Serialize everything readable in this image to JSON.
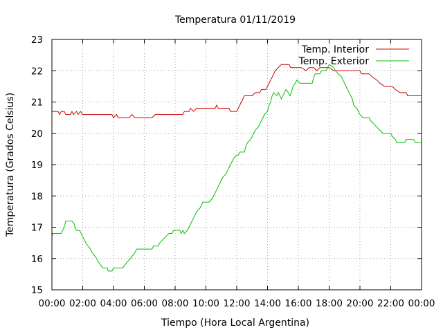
{
  "chart_data": {
    "type": "line",
    "title": "Temperatura 01/11/2019",
    "xlabel": "Tiempo (Hora Local Argentina)",
    "ylabel": "Temperatura (Grados Celsius)",
    "x_unit": "hours",
    "xlim": [
      0,
      24
    ],
    "ylim": [
      15,
      23
    ],
    "x_ticks": [
      0,
      2,
      4,
      6,
      8,
      10,
      12,
      14,
      16,
      18,
      20,
      22,
      24
    ],
    "x_tick_labels": [
      "00:00",
      "02:00",
      "04:00",
      "06:00",
      "08:00",
      "10:00",
      "12:00",
      "14:00",
      "16:00",
      "18:00",
      "20:00",
      "22:00",
      "00:00"
    ],
    "y_ticks": [
      15,
      16,
      17,
      18,
      19,
      20,
      21,
      22,
      23
    ],
    "y_tick_labels": [
      "15",
      "16",
      "17",
      "18",
      "19",
      "20",
      "21",
      "22",
      "23"
    ],
    "grid": true,
    "legend_position": "top-right",
    "series": [
      {
        "name": "Temp. Interior",
        "color": "#cc0000",
        "points": [
          [
            0.0,
            20.7
          ],
          [
            0.4,
            20.7
          ],
          [
            0.5,
            20.6
          ],
          [
            0.6,
            20.7
          ],
          [
            0.8,
            20.7
          ],
          [
            0.9,
            20.6
          ],
          [
            1.2,
            20.6
          ],
          [
            1.3,
            20.7
          ],
          [
            1.4,
            20.6
          ],
          [
            1.6,
            20.7
          ],
          [
            1.7,
            20.6
          ],
          [
            1.85,
            20.7
          ],
          [
            2.0,
            20.6
          ],
          [
            2.4,
            20.6
          ],
          [
            3.0,
            20.6
          ],
          [
            3.5,
            20.6
          ],
          [
            3.9,
            20.6
          ],
          [
            4.0,
            20.5
          ],
          [
            4.2,
            20.6
          ],
          [
            4.3,
            20.5
          ],
          [
            5.0,
            20.5
          ],
          [
            5.2,
            20.6
          ],
          [
            5.4,
            20.5
          ],
          [
            6.0,
            20.5
          ],
          [
            6.5,
            20.5
          ],
          [
            6.7,
            20.6
          ],
          [
            7.5,
            20.6
          ],
          [
            8.5,
            20.6
          ],
          [
            8.6,
            20.7
          ],
          [
            8.9,
            20.7
          ],
          [
            9.0,
            20.8
          ],
          [
            9.2,
            20.7
          ],
          [
            9.4,
            20.8
          ],
          [
            10.0,
            20.8
          ],
          [
            10.6,
            20.8
          ],
          [
            10.7,
            20.9
          ],
          [
            10.8,
            20.8
          ],
          [
            11.5,
            20.8
          ],
          [
            11.6,
            20.7
          ],
          [
            12.0,
            20.7
          ],
          [
            12.3,
            21.0
          ],
          [
            12.4,
            21.1
          ],
          [
            12.5,
            21.2
          ],
          [
            13.0,
            21.2
          ],
          [
            13.2,
            21.3
          ],
          [
            13.5,
            21.3
          ],
          [
            13.6,
            21.4
          ],
          [
            13.9,
            21.4
          ],
          [
            14.1,
            21.6
          ],
          [
            14.3,
            21.8
          ],
          [
            14.5,
            22.0
          ],
          [
            14.7,
            22.1
          ],
          [
            14.9,
            22.2
          ],
          [
            15.4,
            22.2
          ],
          [
            15.5,
            22.1
          ],
          [
            16.2,
            22.1
          ],
          [
            16.5,
            22.0
          ],
          [
            16.7,
            22.1
          ],
          [
            17.0,
            22.1
          ],
          [
            17.2,
            22.0
          ],
          [
            17.4,
            22.1
          ],
          [
            18.0,
            22.1
          ],
          [
            18.3,
            22.0
          ],
          [
            19.5,
            22.0
          ],
          [
            20.0,
            22.0
          ],
          [
            20.1,
            21.9
          ],
          [
            20.6,
            21.9
          ],
          [
            20.8,
            21.8
          ],
          [
            21.1,
            21.7
          ],
          [
            21.3,
            21.6
          ],
          [
            21.6,
            21.5
          ],
          [
            22.1,
            21.5
          ],
          [
            22.3,
            21.4
          ],
          [
            22.6,
            21.3
          ],
          [
            23.0,
            21.3
          ],
          [
            23.1,
            21.2
          ],
          [
            24.0,
            21.2
          ]
        ]
      },
      {
        "name": "Temp. Exterior",
        "color": "#00c000",
        "points": [
          [
            0.0,
            16.7
          ],
          [
            0.05,
            16.8
          ],
          [
            0.6,
            16.8
          ],
          [
            0.7,
            16.9
          ],
          [
            0.8,
            17.0
          ],
          [
            0.9,
            17.2
          ],
          [
            1.3,
            17.2
          ],
          [
            1.45,
            17.1
          ],
          [
            1.5,
            17.0
          ],
          [
            1.6,
            16.9
          ],
          [
            1.8,
            16.9
          ],
          [
            1.9,
            16.8
          ],
          [
            2.0,
            16.7
          ],
          [
            2.1,
            16.6
          ],
          [
            2.2,
            16.5
          ],
          [
            2.35,
            16.4
          ],
          [
            2.5,
            16.3
          ],
          [
            2.6,
            16.2
          ],
          [
            2.75,
            16.1
          ],
          [
            2.9,
            16.0
          ],
          [
            3.0,
            15.9
          ],
          [
            3.15,
            15.8
          ],
          [
            3.3,
            15.7
          ],
          [
            3.6,
            15.7
          ],
          [
            3.65,
            15.6
          ],
          [
            3.9,
            15.6
          ],
          [
            4.0,
            15.7
          ],
          [
            4.6,
            15.7
          ],
          [
            4.75,
            15.8
          ],
          [
            4.9,
            15.9
          ],
          [
            5.1,
            16.0
          ],
          [
            5.25,
            16.1
          ],
          [
            5.4,
            16.2
          ],
          [
            5.5,
            16.3
          ],
          [
            6.5,
            16.3
          ],
          [
            6.6,
            16.4
          ],
          [
            6.9,
            16.4
          ],
          [
            7.0,
            16.5
          ],
          [
            7.2,
            16.6
          ],
          [
            7.4,
            16.7
          ],
          [
            7.6,
            16.8
          ],
          [
            7.8,
            16.8
          ],
          [
            7.9,
            16.9
          ],
          [
            8.3,
            16.9
          ],
          [
            8.4,
            16.8
          ],
          [
            8.5,
            16.9
          ],
          [
            8.6,
            16.8
          ],
          [
            8.8,
            16.9
          ],
          [
            9.0,
            17.1
          ],
          [
            9.1,
            17.2
          ],
          [
            9.2,
            17.3
          ],
          [
            9.3,
            17.4
          ],
          [
            9.4,
            17.5
          ],
          [
            9.6,
            17.6
          ],
          [
            9.8,
            17.8
          ],
          [
            10.2,
            17.8
          ],
          [
            10.4,
            17.9
          ],
          [
            10.5,
            18.0
          ],
          [
            10.6,
            18.1
          ],
          [
            10.7,
            18.2
          ],
          [
            10.8,
            18.3
          ],
          [
            10.9,
            18.4
          ],
          [
            11.0,
            18.5
          ],
          [
            11.1,
            18.6
          ],
          [
            11.3,
            18.7
          ],
          [
            11.4,
            18.8
          ],
          [
            11.5,
            18.9
          ],
          [
            11.6,
            19.0
          ],
          [
            11.7,
            19.1
          ],
          [
            11.8,
            19.2
          ],
          [
            12.0,
            19.3
          ],
          [
            12.1,
            19.3
          ],
          [
            12.2,
            19.4
          ],
          [
            12.5,
            19.4
          ],
          [
            12.6,
            19.6
          ],
          [
            12.7,
            19.7
          ],
          [
            12.9,
            19.8
          ],
          [
            13.0,
            19.9
          ],
          [
            13.1,
            20.0
          ],
          [
            13.2,
            20.1
          ],
          [
            13.4,
            20.2
          ],
          [
            13.5,
            20.3
          ],
          [
            13.6,
            20.4
          ],
          [
            13.7,
            20.5
          ],
          [
            13.8,
            20.6
          ],
          [
            14.0,
            20.7
          ],
          [
            14.1,
            20.9
          ],
          [
            14.2,
            21.0
          ],
          [
            14.3,
            21.2
          ],
          [
            14.4,
            21.3
          ],
          [
            14.6,
            21.2
          ],
          [
            14.7,
            21.3
          ],
          [
            14.8,
            21.2
          ],
          [
            14.9,
            21.1
          ],
          [
            15.0,
            21.2
          ],
          [
            15.1,
            21.3
          ],
          [
            15.2,
            21.4
          ],
          [
            15.35,
            21.3
          ],
          [
            15.45,
            21.2
          ],
          [
            15.55,
            21.3
          ],
          [
            15.65,
            21.5
          ],
          [
            15.8,
            21.6
          ],
          [
            15.9,
            21.7
          ],
          [
            16.1,
            21.6
          ],
          [
            16.9,
            21.6
          ],
          [
            17.0,
            21.8
          ],
          [
            17.1,
            21.9
          ],
          [
            17.4,
            21.9
          ],
          [
            17.5,
            22.0
          ],
          [
            17.8,
            22.0
          ],
          [
            17.9,
            22.1
          ],
          [
            18.0,
            22.2
          ],
          [
            18.3,
            22.1
          ],
          [
            18.4,
            22.0
          ],
          [
            18.6,
            21.9
          ],
          [
            18.8,
            21.8
          ],
          [
            18.9,
            21.7
          ],
          [
            19.0,
            21.6
          ],
          [
            19.1,
            21.5
          ],
          [
            19.3,
            21.3
          ],
          [
            19.4,
            21.2
          ],
          [
            19.5,
            21.1
          ],
          [
            19.6,
            20.9
          ],
          [
            19.8,
            20.8
          ],
          [
            19.9,
            20.7
          ],
          [
            20.0,
            20.6
          ],
          [
            20.2,
            20.5
          ],
          [
            20.6,
            20.5
          ],
          [
            20.7,
            20.4
          ],
          [
            20.9,
            20.3
          ],
          [
            21.1,
            20.2
          ],
          [
            21.3,
            20.1
          ],
          [
            21.5,
            20.0
          ],
          [
            22.0,
            20.0
          ],
          [
            22.1,
            19.9
          ],
          [
            22.3,
            19.8
          ],
          [
            22.4,
            19.7
          ],
          [
            22.9,
            19.7
          ],
          [
            23.0,
            19.8
          ],
          [
            23.5,
            19.8
          ],
          [
            23.6,
            19.7
          ],
          [
            24.0,
            19.7
          ]
        ]
      }
    ]
  }
}
